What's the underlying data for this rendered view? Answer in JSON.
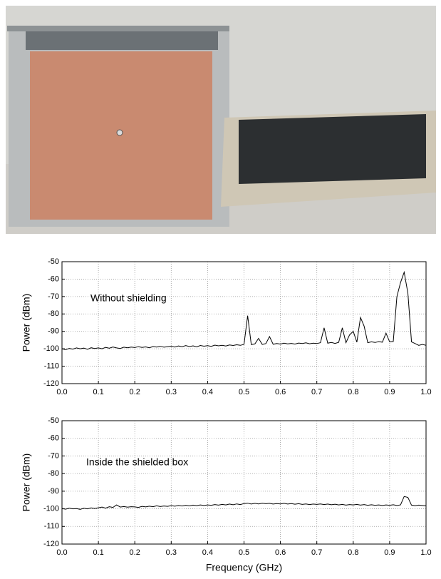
{
  "chart_data": [
    {
      "type": "line",
      "annotation": "Without shielding",
      "ylabel": "Power (dBm)",
      "color": "#000000",
      "grid": true,
      "xlim": [
        0,
        1
      ],
      "ylim": [
        -120,
        -50
      ],
      "xticks": [
        {
          "value": 0,
          "label": "0.0"
        },
        0.1,
        0.2,
        0.3,
        0.4,
        0.5,
        0.6,
        0.7,
        0.8,
        0.9,
        {
          "value": 1,
          "label": "1.0"
        }
      ],
      "yticks": [
        -50,
        -60,
        -70,
        -80,
        -90,
        -100,
        -110,
        -120
      ],
      "x": [
        0,
        0.01,
        0.02,
        0.03,
        0.04,
        0.05,
        0.06,
        0.07,
        0.08,
        0.09,
        0.1,
        0.11,
        0.12,
        0.13,
        0.14,
        0.15,
        0.16,
        0.17,
        0.18,
        0.19,
        0.2,
        0.21,
        0.22,
        0.23,
        0.24,
        0.25,
        0.26,
        0.27,
        0.28,
        0.29,
        0.3,
        0.31,
        0.32,
        0.33,
        0.34,
        0.35,
        0.36,
        0.37,
        0.38,
        0.39,
        0.4,
        0.41,
        0.42,
        0.43,
        0.44,
        0.45,
        0.46,
        0.47,
        0.48,
        0.49,
        0.5,
        0.51,
        0.52,
        0.53,
        0.54,
        0.55,
        0.56,
        0.57,
        0.58,
        0.59,
        0.6,
        0.61,
        0.62,
        0.63,
        0.64,
        0.65,
        0.66,
        0.67,
        0.68,
        0.69,
        0.7,
        0.71,
        0.72,
        0.73,
        0.74,
        0.75,
        0.76,
        0.77,
        0.78,
        0.79,
        0.8,
        0.81,
        0.82,
        0.83,
        0.84,
        0.85,
        0.86,
        0.87,
        0.88,
        0.89,
        0.9,
        0.91,
        0.92,
        0.93,
        0.94,
        0.95,
        0.96,
        0.97,
        0.98,
        0.99,
        1
      ],
      "values": [
        -100,
        -100.5,
        -99.8,
        -100.2,
        -99.5,
        -100,
        -99.6,
        -100.3,
        -99.4,
        -99.8,
        -99.5,
        -100,
        -99.2,
        -99.7,
        -99,
        -99.5,
        -99.8,
        -99.1,
        -99.4,
        -99,
        -99.3,
        -98.8,
        -99.2,
        -98.9,
        -99.4,
        -98.7,
        -99,
        -98.6,
        -99.1,
        -98.8,
        -98.5,
        -99,
        -98.4,
        -98.8,
        -98.2,
        -98.7,
        -98.3,
        -98.9,
        -98.1,
        -98.5,
        -98.2,
        -98.6,
        -97.9,
        -98.3,
        -98,
        -98.4,
        -97.8,
        -98.1,
        -97.7,
        -98,
        -97.5,
        -81,
        -97.6,
        -97.2,
        -94,
        -97.5,
        -97,
        -93,
        -97.4,
        -97,
        -97.3,
        -96.8,
        -97.2,
        -96.9,
        -97.3,
        -96.7,
        -97,
        -96.6,
        -97.1,
        -96.8,
        -97,
        -96.5,
        -88,
        -96.8,
        -96.4,
        -96.9,
        -96.3,
        -88,
        -96.5,
        -92,
        -90,
        -96.2,
        -82,
        -87,
        -96.5,
        -96,
        -96.4,
        -95.9,
        -96.2,
        -91,
        -96,
        -95.8,
        -70,
        -62,
        -56,
        -68,
        -96,
        -97,
        -98,
        -97.5,
        -98
      ]
    },
    {
      "type": "line",
      "annotation": "Inside the shielded box",
      "ylabel": "Power (dBm)",
      "xlabel": "Frequency (GHz)",
      "color": "#000000",
      "grid": true,
      "xlim": [
        0,
        1
      ],
      "ylim": [
        -120,
        -50
      ],
      "xticks": [
        {
          "value": 0,
          "label": "0.0"
        },
        0.1,
        0.2,
        0.3,
        0.4,
        0.5,
        0.6,
        0.7,
        0.8,
        0.9,
        {
          "value": 1,
          "label": "1.0"
        }
      ],
      "yticks": [
        -50,
        -60,
        -70,
        -80,
        -90,
        -100,
        -110,
        -120
      ],
      "x": [
        0,
        0.01,
        0.02,
        0.03,
        0.04,
        0.05,
        0.06,
        0.07,
        0.08,
        0.09,
        0.1,
        0.11,
        0.12,
        0.13,
        0.14,
        0.15,
        0.16,
        0.17,
        0.18,
        0.19,
        0.2,
        0.21,
        0.22,
        0.23,
        0.24,
        0.25,
        0.26,
        0.27,
        0.28,
        0.29,
        0.3,
        0.31,
        0.32,
        0.33,
        0.34,
        0.35,
        0.36,
        0.37,
        0.38,
        0.39,
        0.4,
        0.41,
        0.42,
        0.43,
        0.44,
        0.45,
        0.46,
        0.47,
        0.48,
        0.49,
        0.5,
        0.51,
        0.52,
        0.53,
        0.54,
        0.55,
        0.56,
        0.57,
        0.58,
        0.59,
        0.6,
        0.61,
        0.62,
        0.63,
        0.64,
        0.65,
        0.66,
        0.67,
        0.68,
        0.69,
        0.7,
        0.71,
        0.72,
        0.73,
        0.74,
        0.75,
        0.76,
        0.77,
        0.78,
        0.79,
        0.8,
        0.81,
        0.82,
        0.83,
        0.84,
        0.85,
        0.86,
        0.87,
        0.88,
        0.89,
        0.9,
        0.91,
        0.92,
        0.93,
        0.94,
        0.95,
        0.96,
        0.97,
        0.98,
        0.99,
        1
      ],
      "values": [
        -99.8,
        -100.2,
        -99.6,
        -100,
        -99.9,
        -100.3,
        -99.7,
        -100,
        -99.5,
        -99.8,
        -99.4,
        -99,
        -99.6,
        -98.8,
        -99.2,
        -97.8,
        -99,
        -98.7,
        -99.1,
        -98.8,
        -98.9,
        -99.2,
        -98.6,
        -98.9,
        -98.5,
        -98.8,
        -98.3,
        -98.7,
        -98.4,
        -98.6,
        -98.2,
        -98.5,
        -98.1,
        -98.4,
        -98,
        -98.3,
        -97.9,
        -98.2,
        -97.8,
        -98.1,
        -97.8,
        -98,
        -97.6,
        -97.9,
        -97.5,
        -97.8,
        -97.3,
        -97.7,
        -97.2,
        -97.6,
        -97,
        -96.8,
        -97.3,
        -96.9,
        -97.2,
        -96.8,
        -97.1,
        -96.9,
        -97.3,
        -97,
        -97.2,
        -96.9,
        -97.3,
        -97,
        -97.4,
        -97.1,
        -97.5,
        -97.2,
        -97.6,
        -97.3,
        -97.5,
        -97.2,
        -97.6,
        -97.3,
        -97.7,
        -97.4,
        -97.8,
        -97.5,
        -97.9,
        -97.6,
        -97.8,
        -97.5,
        -97.9,
        -97.6,
        -98,
        -97.7,
        -98,
        -97.8,
        -98.1,
        -97.8,
        -98,
        -97.7,
        -98.1,
        -97.8,
        -93,
        -93.5,
        -97.9,
        -98.2,
        -97.9,
        -98.1,
        -98.3
      ]
    }
  ]
}
